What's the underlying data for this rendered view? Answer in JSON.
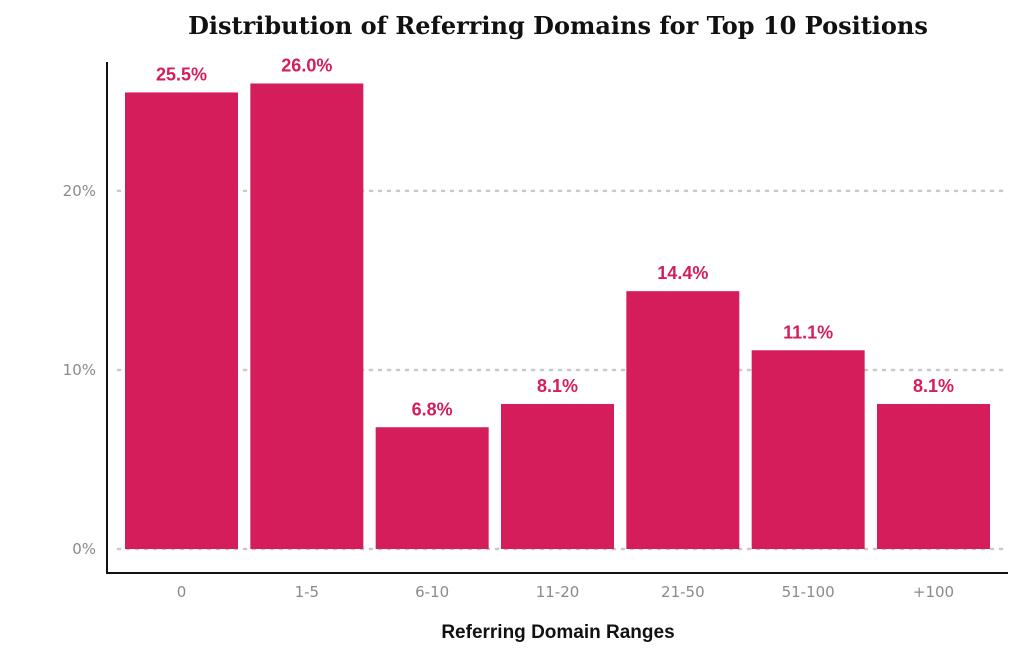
{
  "chart_data": {
    "type": "bar",
    "title": "Distribution of Referring Domains for Top 10 Positions",
    "xlabel": "Referring Domain Ranges",
    "ylabel": "",
    "categories": [
      "0",
      "1-5",
      "6-10",
      "11-20",
      "21-50",
      "51-100",
      "+100"
    ],
    "values": [
      25.5,
      26.0,
      6.8,
      8.1,
      14.4,
      11.1,
      8.1
    ],
    "value_labels": [
      "25.5%",
      "26.0%",
      "6.8%",
      "8.1%",
      "14.4%",
      "11.1%",
      "8.1%"
    ],
    "ylim": [
      0,
      27.2
    ],
    "yticks": [
      0,
      10,
      20
    ],
    "ytick_labels": [
      "0%",
      "10%",
      "20%"
    ],
    "grid": true,
    "bar_color": "#D41D5A",
    "label_color": "#D41D5A"
  }
}
